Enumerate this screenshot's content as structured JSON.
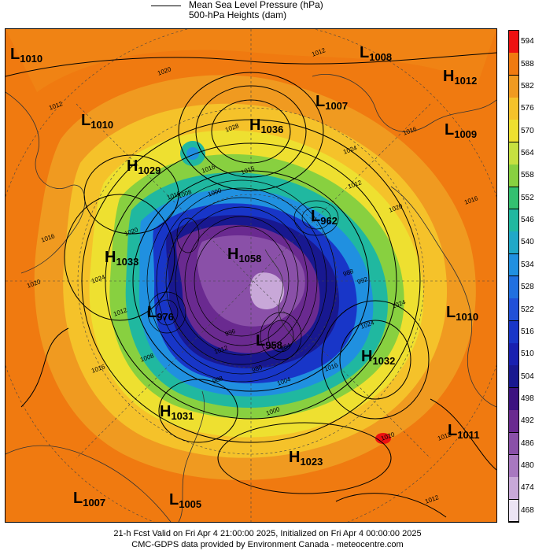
{
  "legend": {
    "line1": "Mean Sea Level Pressure (hPa)",
    "line2": "500-hPa Heights (dam)"
  },
  "footer": {
    "line1": "21-h Fcst Valid on Fri Apr  4 21:00:00 2025, Initialized on Fri Apr  4 00:00:00 2025",
    "line2": "CMC-GDPS data provided by Environment Canada - meteocentre.com"
  },
  "colorbar": {
    "labels": [
      "594",
      "588",
      "582",
      "576",
      "570",
      "564",
      "558",
      "552",
      "546",
      "540",
      "534",
      "528",
      "522",
      "516",
      "510",
      "504",
      "498",
      "492",
      "486",
      "480",
      "474",
      "468"
    ],
    "colors": [
      "#ee1111",
      "#f07a10",
      "#f09a20",
      "#f5c22a",
      "#eee030",
      "#c6e040",
      "#88d040",
      "#33c070",
      "#20b8a0",
      "#20a8c8",
      "#2090e0",
      "#2070e0",
      "#2050d8",
      "#1836c8",
      "#1820b0",
      "#181890",
      "#3c1280",
      "#6a2a90",
      "#8a50a8",
      "#a878c0",
      "#c8a8d8",
      "#ece4f4"
    ]
  },
  "pressure_centers": [
    {
      "type": "L",
      "value": "1010"
    },
    {
      "type": "L",
      "value": "1008"
    },
    {
      "type": "H",
      "value": "1012"
    },
    {
      "type": "L",
      "value": "1007"
    },
    {
      "type": "L",
      "value": "1010"
    },
    {
      "type": "H",
      "value": "1036"
    },
    {
      "type": "L",
      "value": "1009"
    },
    {
      "type": "H",
      "value": "1029"
    },
    {
      "type": "L",
      "value": "962"
    },
    {
      "type": "H",
      "value": "1058"
    },
    {
      "type": "H",
      "value": "1033"
    },
    {
      "type": "L",
      "value": "976"
    },
    {
      "type": "L",
      "value": "958"
    },
    {
      "type": "L",
      "value": "1010"
    },
    {
      "type": "H",
      "value": "1032"
    },
    {
      "type": "H",
      "value": "1031"
    },
    {
      "type": "L",
      "value": "1011"
    },
    {
      "type": "H",
      "value": "1023"
    },
    {
      "type": "L",
      "value": "1007"
    },
    {
      "type": "L",
      "value": "1005"
    }
  ],
  "isobar_labels": [
    "1012",
    "1020",
    "1012",
    "1028",
    "1024",
    "1016",
    "1016",
    "1012",
    "1016",
    "1016",
    "1020",
    "1008",
    "1000",
    "988",
    "992",
    "1024",
    "1012",
    "1008",
    "1012",
    "1016",
    "1024",
    "1020",
    "1024",
    "1016",
    "1020",
    "1016",
    "1016",
    "1012",
    "1020",
    "1012",
    "1004",
    "1000",
    "996",
    "984",
    "980",
    "988"
  ]
}
